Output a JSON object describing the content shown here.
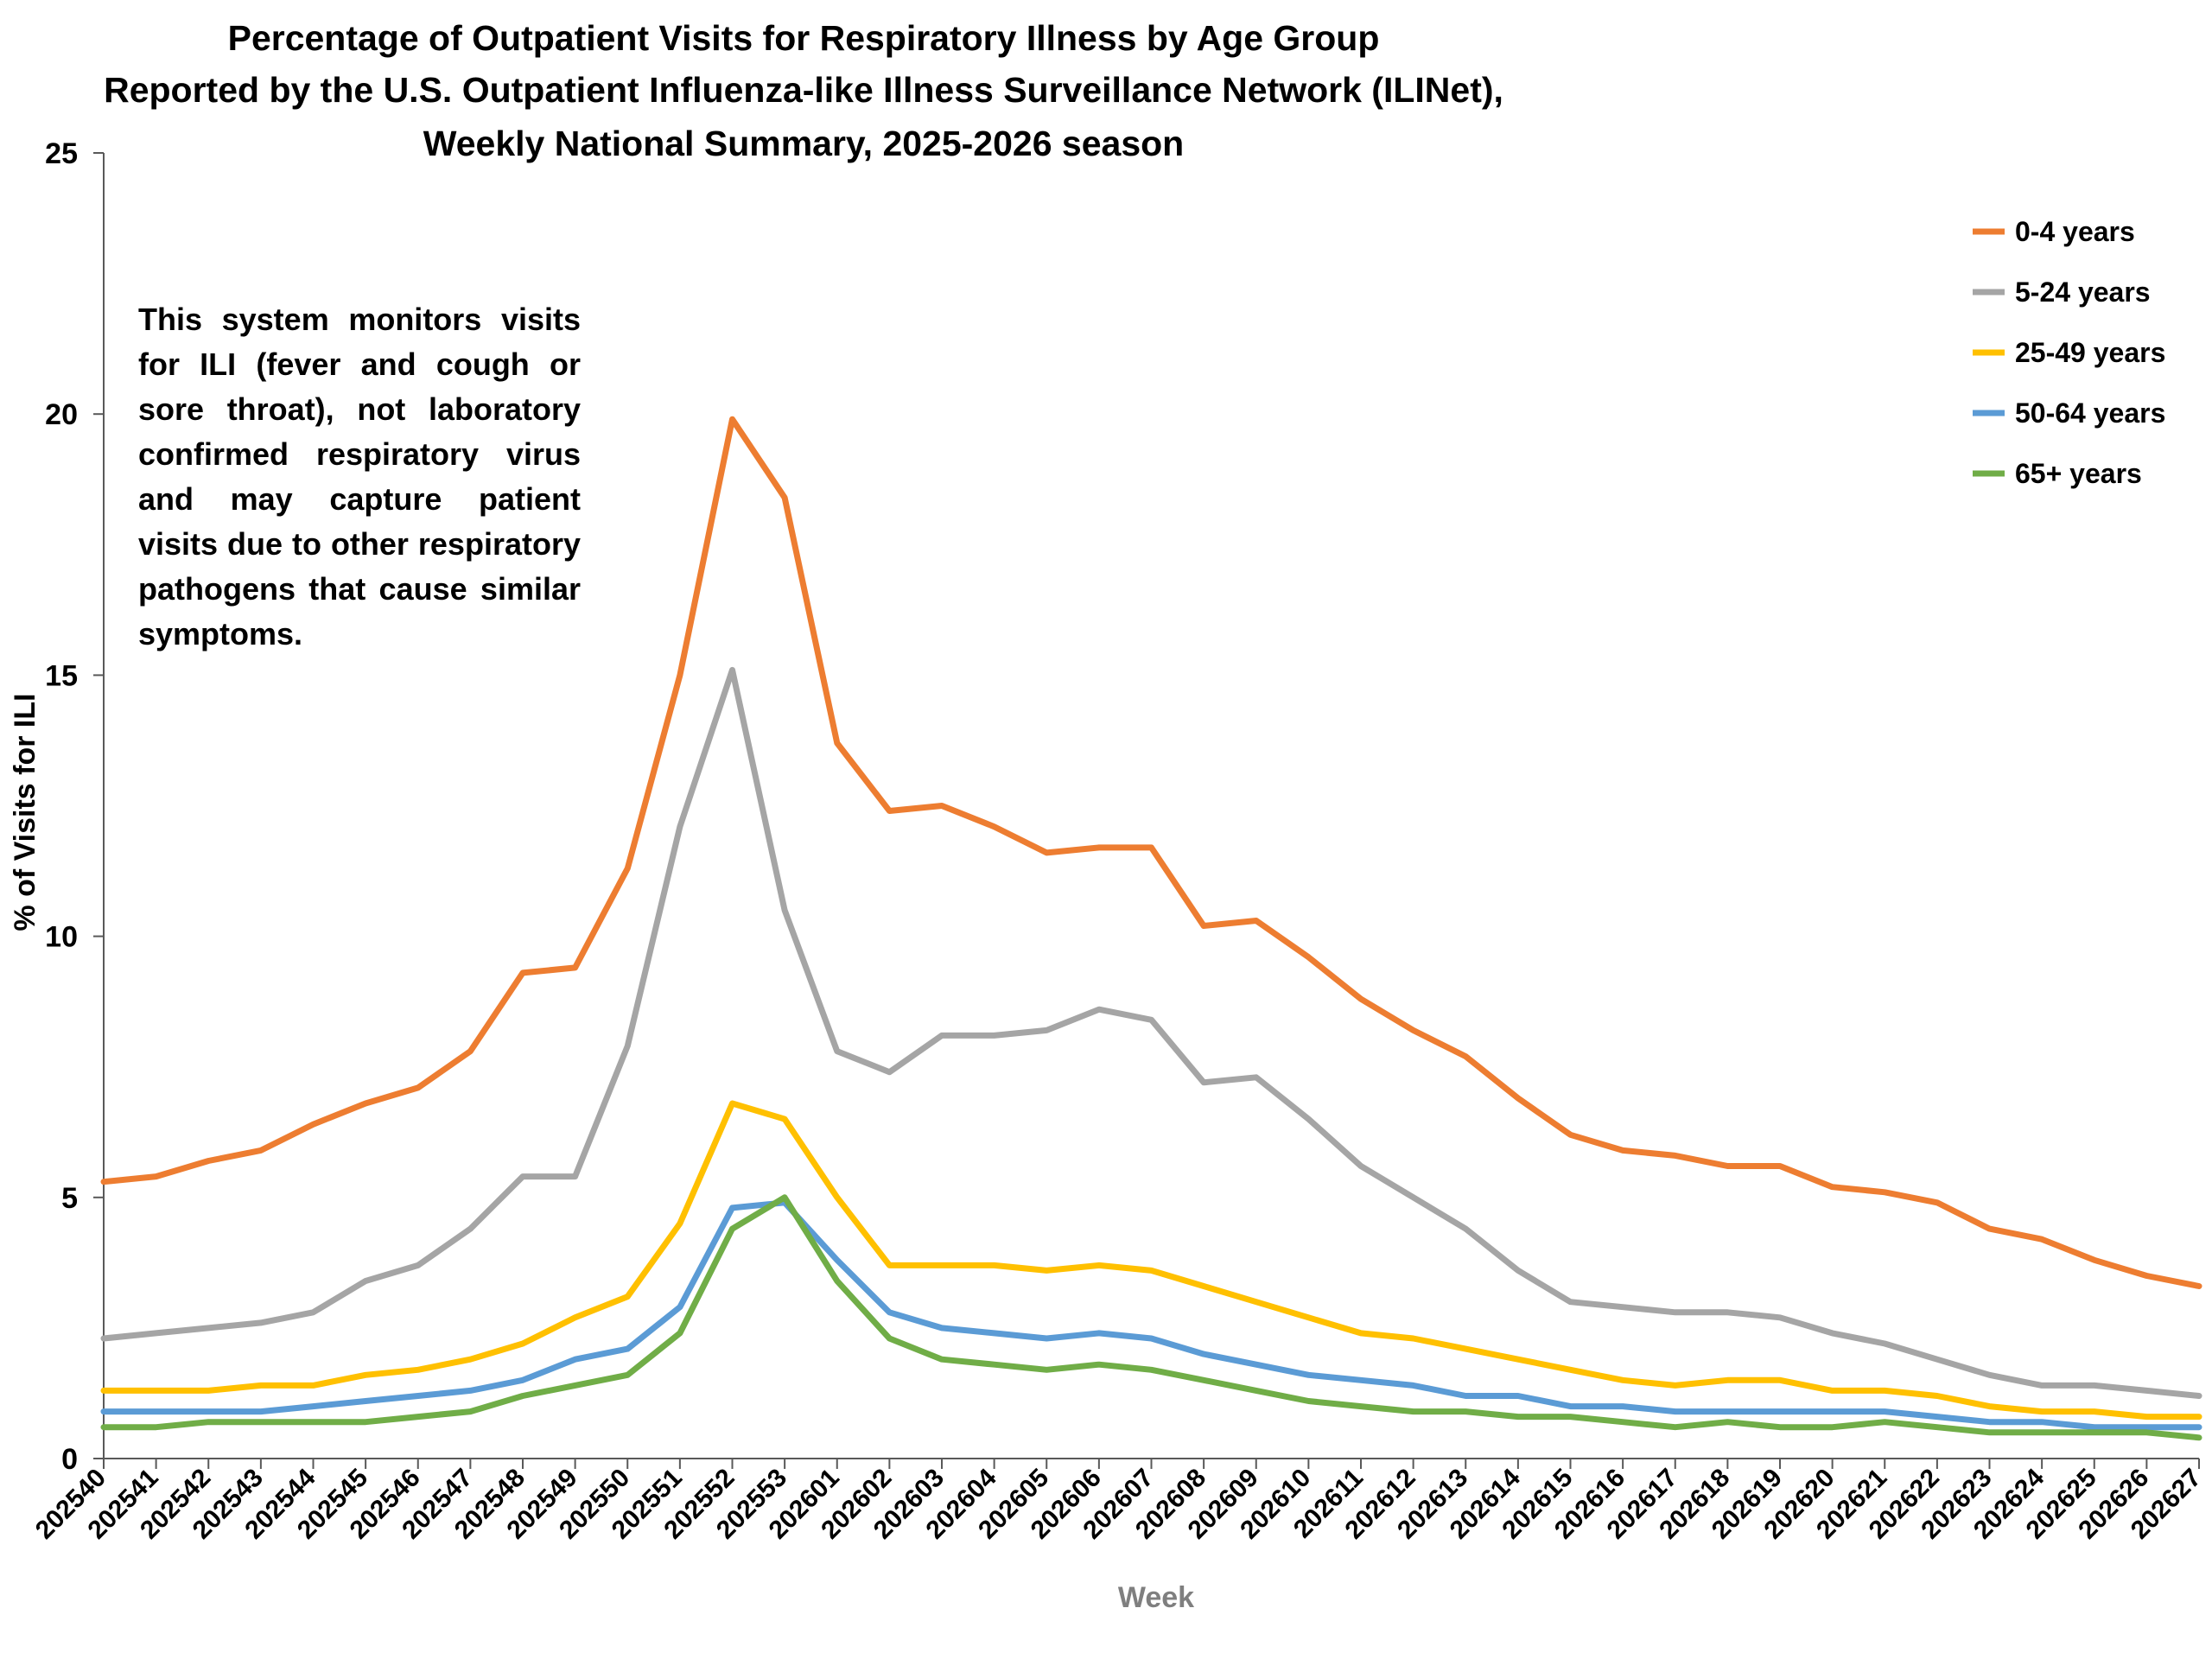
{
  "chart_data": {
    "type": "line",
    "title": [
      "Percentage of Outpatient Visits for Respiratory Illness by Age Group",
      "Reported by the U.S. Outpatient Influenza-like Illness Surveillance Network (ILINet),",
      "Weekly National Summary, 2025-2026 season"
    ],
    "xlabel": "Week",
    "ylabel": "% of Visits for ILI",
    "ylim": [
      0,
      25
    ],
    "yticks": [
      "0",
      "5",
      "10",
      "15",
      "20",
      "25"
    ],
    "grid": false,
    "legend_position": "top-right",
    "annotation": "This system monitors visits for ILI (fever and cough or sore throat), not laboratory confirmed respiratory virus and may capture patient visits due to other respiratory pathogens that cause similar symptoms.",
    "categories": [
      "202540",
      "202541",
      "202542",
      "202543",
      "202544",
      "202545",
      "202546",
      "202547",
      "202548",
      "202549",
      "202550",
      "202551",
      "202552",
      "202553",
      "202601",
      "202602",
      "202603",
      "202604",
      "202605",
      "202606",
      "202607",
      "202608",
      "202609",
      "202610",
      "202611",
      "202612",
      "202613",
      "202614",
      "202615",
      "202616",
      "202617",
      "202618",
      "202619",
      "202620",
      "202621",
      "202622",
      "202623",
      "202624",
      "202625",
      "202626",
      "202627"
    ],
    "series": [
      {
        "name": "0-4 years",
        "color": "#ed7d31",
        "values": [
          5.3,
          5.4,
          5.7,
          5.9,
          6.4,
          6.8,
          7.1,
          7.8,
          9.3,
          9.4,
          11.3,
          15.0,
          19.9,
          18.4,
          13.7,
          12.4,
          12.5,
          12.1,
          11.6,
          11.7,
          11.7,
          10.2,
          10.3,
          9.6,
          8.8,
          8.2,
          7.7,
          6.9,
          6.2,
          5.9,
          5.8,
          5.6,
          5.6,
          5.2,
          5.1,
          4.9,
          4.4,
          4.2,
          3.8,
          3.5,
          3.3
        ]
      },
      {
        "name": "5-24 years",
        "color": "#a5a5a5",
        "values": [
          2.3,
          2.4,
          2.5,
          2.6,
          2.8,
          3.4,
          3.7,
          4.4,
          5.4,
          5.4,
          7.9,
          12.1,
          15.1,
          10.5,
          7.8,
          7.4,
          8.1,
          8.1,
          8.2,
          8.6,
          8.4,
          7.2,
          7.3,
          6.5,
          5.6,
          5.0,
          4.4,
          3.6,
          3.0,
          2.9,
          2.8,
          2.8,
          2.7,
          2.4,
          2.2,
          1.9,
          1.6,
          1.4,
          1.4,
          1.3,
          1.2
        ]
      },
      {
        "name": "25-49 years",
        "color": "#ffc000",
        "values": [
          1.3,
          1.3,
          1.3,
          1.4,
          1.4,
          1.6,
          1.7,
          1.9,
          2.2,
          2.7,
          3.1,
          4.5,
          6.8,
          6.5,
          5.0,
          3.7,
          3.7,
          3.7,
          3.6,
          3.7,
          3.6,
          3.3,
          3.0,
          2.7,
          2.4,
          2.3,
          2.1,
          1.9,
          1.7,
          1.5,
          1.4,
          1.5,
          1.5,
          1.3,
          1.3,
          1.2,
          1.0,
          0.9,
          0.9,
          0.8,
          0.8
        ]
      },
      {
        "name": "50-64 years",
        "color": "#5b9bd5",
        "values": [
          0.9,
          0.9,
          0.9,
          0.9,
          1.0,
          1.1,
          1.2,
          1.3,
          1.5,
          1.9,
          2.1,
          2.9,
          4.8,
          4.9,
          3.8,
          2.8,
          2.5,
          2.4,
          2.3,
          2.4,
          2.3,
          2.0,
          1.8,
          1.6,
          1.5,
          1.4,
          1.2,
          1.2,
          1.0,
          1.0,
          0.9,
          0.9,
          0.9,
          0.9,
          0.9,
          0.8,
          0.7,
          0.7,
          0.6,
          0.6,
          0.6
        ]
      },
      {
        "name": "65+ years",
        "color": "#70ad47",
        "values": [
          0.6,
          0.6,
          0.7,
          0.7,
          0.7,
          0.7,
          0.8,
          0.9,
          1.2,
          1.4,
          1.6,
          2.4,
          4.4,
          5.0,
          3.4,
          2.3,
          1.9,
          1.8,
          1.7,
          1.8,
          1.7,
          1.5,
          1.3,
          1.1,
          1.0,
          0.9,
          0.9,
          0.8,
          0.8,
          0.7,
          0.6,
          0.7,
          0.6,
          0.6,
          0.7,
          0.6,
          0.5,
          0.5,
          0.5,
          0.5,
          0.4
        ]
      }
    ]
  }
}
